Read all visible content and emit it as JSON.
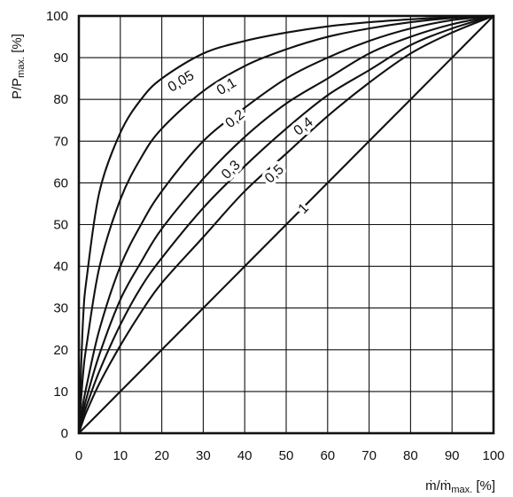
{
  "chart_data": {
    "type": "line",
    "title": "",
    "xlabel": {
      "main": "ṁ/ṁ",
      "sub": "max.",
      "unit": " [%]"
    },
    "ylabel": {
      "main": "P/P",
      "sub": "max.",
      "unit": " [%]"
    },
    "xlim": [
      0,
      100
    ],
    "ylim": [
      0,
      100
    ],
    "xticks": [
      0,
      10,
      20,
      30,
      40,
      50,
      60,
      70,
      80,
      90,
      100
    ],
    "yticks": [
      0,
      10,
      20,
      30,
      40,
      50,
      60,
      70,
      80,
      90,
      100
    ],
    "grid": true,
    "legend": "inline-labels",
    "x": [
      0,
      1,
      2,
      5,
      10,
      15,
      20,
      30,
      40,
      50,
      60,
      70,
      80,
      90,
      100
    ],
    "series": [
      {
        "name": "0,05",
        "values": [
          0,
          27,
          38,
          58,
          72,
          80,
          85,
          91,
          94,
          96,
          97.5,
          98.5,
          99.2,
          99.7,
          100
        ]
      },
      {
        "name": "0,1",
        "values": [
          0,
          14,
          22,
          40,
          56,
          66,
          73,
          82,
          88,
          92,
          95,
          97,
          98.5,
          99.5,
          100
        ]
      },
      {
        "name": "0,2",
        "values": [
          0,
          7,
          12,
          25,
          40,
          50,
          58,
          70,
          78,
          85,
          90,
          94,
          97,
          99,
          100
        ]
      },
      {
        "name": "0,3",
        "values": [
          0,
          5,
          9,
          19,
          32,
          41,
          49,
          61,
          71,
          79,
          85,
          91,
          95,
          98,
          100
        ]
      },
      {
        "name": "0,4",
        "values": [
          0,
          4,
          7,
          15,
          26,
          35,
          42,
          54,
          64,
          73,
          81,
          87,
          93,
          97,
          100
        ]
      },
      {
        "name": "0,5",
        "values": [
          0,
          3,
          5.5,
          12,
          21,
          29,
          36,
          47,
          58,
          67,
          76,
          84,
          91,
          96,
          100
        ]
      },
      {
        "name": "1",
        "values": [
          0,
          1,
          2,
          5,
          10,
          15,
          20,
          30,
          40,
          50,
          60,
          70,
          80,
          90,
          100
        ]
      }
    ],
    "annotations": [
      {
        "text": "0,05",
        "x": 24.5,
        "y": 84.5
      },
      {
        "text": "0,1",
        "x": 35.5,
        "y": 83.3
      },
      {
        "text": "0,2",
        "x": 37.5,
        "y": 75.5
      },
      {
        "text": "0,3",
        "x": 36.5,
        "y": 63.3
      },
      {
        "text": "0,4",
        "x": 54.0,
        "y": 73.7
      },
      {
        "text": "0,5",
        "x": 47.0,
        "y": 62.3
      },
      {
        "text": "1",
        "x": 54.0,
        "y": 54.0
      }
    ]
  }
}
